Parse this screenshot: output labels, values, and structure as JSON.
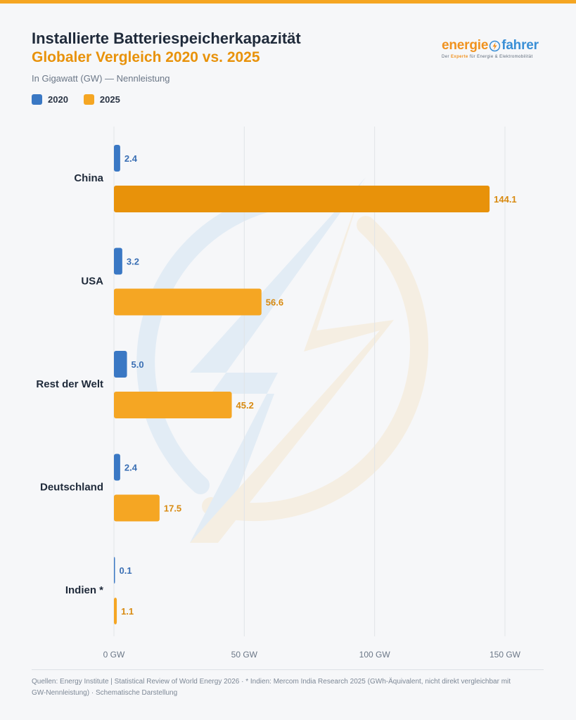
{
  "header": {
    "title": "Installierte Batteriespeicherkapazität",
    "subtitle": "Globaler Vergleich 2020 vs. 2025",
    "unit_note": "In Gigawatt (GW) — Nennleistung"
  },
  "logo": {
    "word_left": "energie",
    "word_right": "fahrer",
    "tagline_pre": "Der ",
    "tagline_bold": "Experte",
    "tagline_post": " für Energie & Elektromobilität"
  },
  "legend": {
    "items": [
      {
        "label": "2020",
        "color": "#3a78c4"
      },
      {
        "label": "2025",
        "color": "#f5a623"
      }
    ]
  },
  "chart_data": {
    "type": "bar",
    "orientation": "horizontal",
    "categories": [
      "China",
      "USA",
      "Rest der Welt",
      "Deutschland",
      "Indien *"
    ],
    "series": [
      {
        "name": "2020",
        "values": [
          2.4,
          3.2,
          5.0,
          2.4,
          0.1
        ],
        "labels": [
          "2.4",
          "3.2",
          "5.0",
          "2.4",
          "0.1"
        ],
        "color": "#3a78c4"
      },
      {
        "name": "2025",
        "values": [
          144.1,
          56.6,
          45.2,
          17.5,
          1.1
        ],
        "labels": [
          "144.1",
          "56.6",
          "45.2",
          "17.5",
          "1.1"
        ],
        "color": "#f5a623",
        "highlight_color": "#e8920a",
        "highlight_index": 0
      }
    ],
    "xlim": [
      0,
      150
    ],
    "xticks": [
      0,
      50,
      100,
      150
    ],
    "xtick_labels": [
      "0 GW",
      "50 GW",
      "100 GW",
      "150 GW"
    ],
    "grid": true,
    "legend_position": "top-left"
  },
  "footer": {
    "text": "Quellen: Energy Institute | Statistical Review of World Energy 2026  ·  * Indien: Mercom India Research 2025 (GWh-Äquivalent, nicht direkt vergleichbar mit GW-Nennleistung)  ·  Schematische Darstellung"
  }
}
